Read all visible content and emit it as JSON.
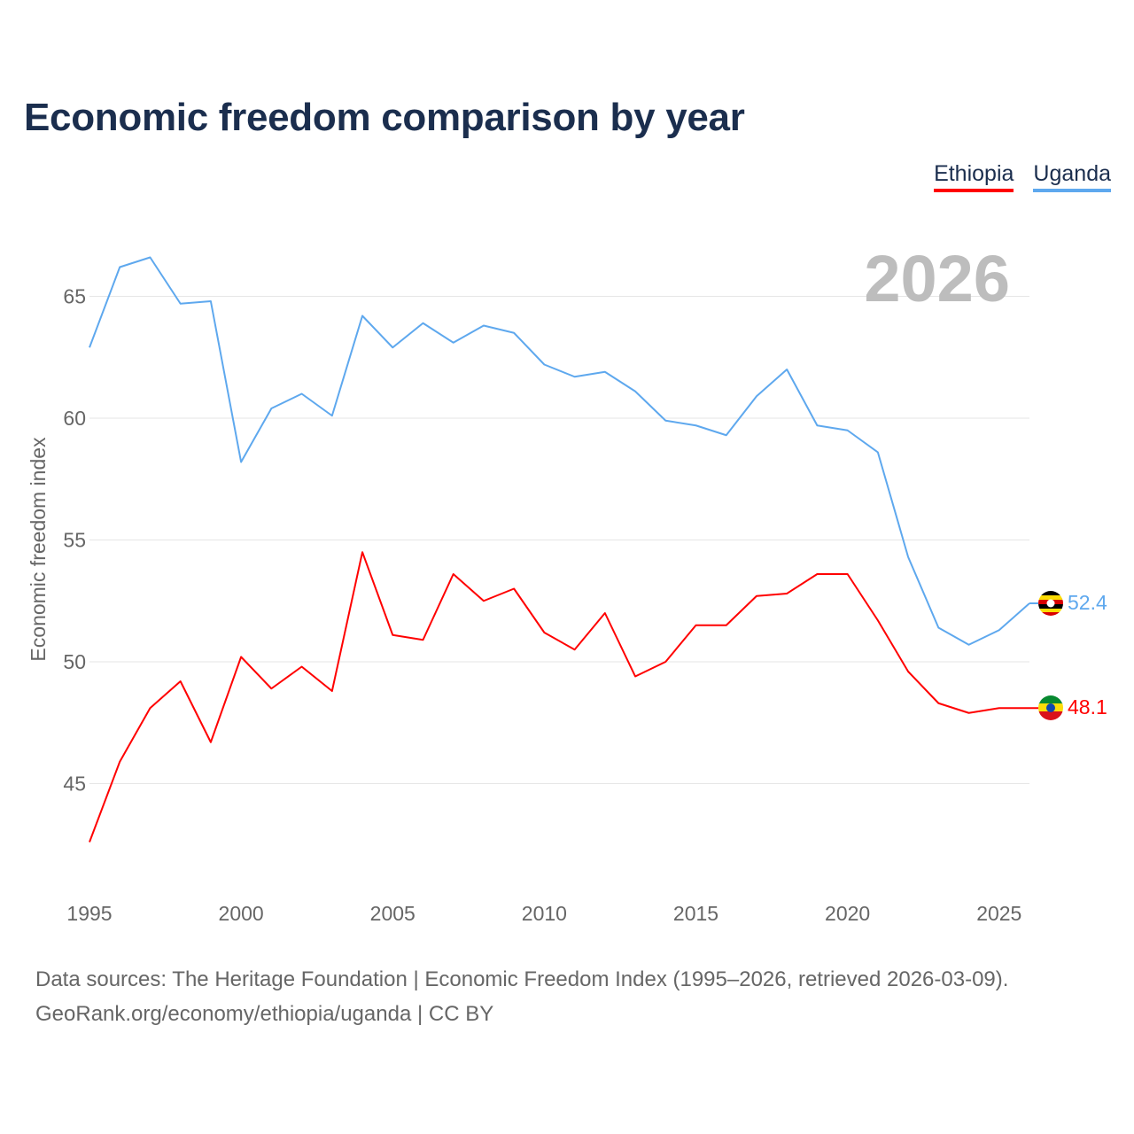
{
  "title": "Economic freedom comparison by year",
  "legend": [
    {
      "label": "Ethiopia",
      "color": "#ff0000"
    },
    {
      "label": "Uganda",
      "color": "#5ea8ee"
    }
  ],
  "year_label": "2026",
  "footer": {
    "line1": "Data sources: The Heritage Foundation | Economic Freedom Index (1995–2026, retrieved 2026-03-09).",
    "line2": "GeoRank.org/economy/ethiopia/uganda | CC BY"
  },
  "chart_data": {
    "type": "line",
    "title": "Economic freedom comparison by year",
    "xlabel": "",
    "ylabel": "Economic freedom index",
    "x": [
      1995,
      1996,
      1997,
      1998,
      1999,
      2000,
      2001,
      2002,
      2003,
      2004,
      2005,
      2006,
      2007,
      2008,
      2009,
      2010,
      2011,
      2012,
      2013,
      2014,
      2015,
      2016,
      2017,
      2018,
      2019,
      2020,
      2021,
      2022,
      2023,
      2024,
      2025,
      2026
    ],
    "xlim": [
      1995,
      2026
    ],
    "ylim": [
      41.5,
      67.5
    ],
    "xticks": [
      "1995",
      "2000",
      "2005",
      "2010",
      "2015",
      "2020",
      "2025"
    ],
    "yticks": [
      "45",
      "50",
      "55",
      "60",
      "65"
    ],
    "grid": true,
    "legend_position": "top-right",
    "series": [
      {
        "name": "Ethiopia",
        "color": "#ff0000",
        "end_label": "48.1",
        "values": [
          42.6,
          45.9,
          48.1,
          49.2,
          46.7,
          50.2,
          48.9,
          49.8,
          48.8,
          54.5,
          51.1,
          50.9,
          53.6,
          52.5,
          53.0,
          51.2,
          50.5,
          52.0,
          49.4,
          50.0,
          51.5,
          51.5,
          52.7,
          52.8,
          53.6,
          53.6,
          51.7,
          49.6,
          48.3,
          47.9,
          48.1,
          48.1
        ]
      },
      {
        "name": "Uganda",
        "color": "#5ea8ee",
        "end_label": "52.4",
        "values": [
          62.9,
          66.2,
          66.6,
          64.7,
          64.8,
          58.2,
          60.4,
          61.0,
          60.1,
          64.2,
          62.9,
          63.9,
          63.1,
          63.8,
          63.5,
          62.2,
          61.7,
          61.9,
          61.1,
          59.9,
          59.7,
          59.3,
          60.9,
          62.0,
          59.7,
          59.5,
          58.6,
          54.3,
          51.4,
          50.7,
          51.3,
          52.4
        ]
      }
    ]
  }
}
